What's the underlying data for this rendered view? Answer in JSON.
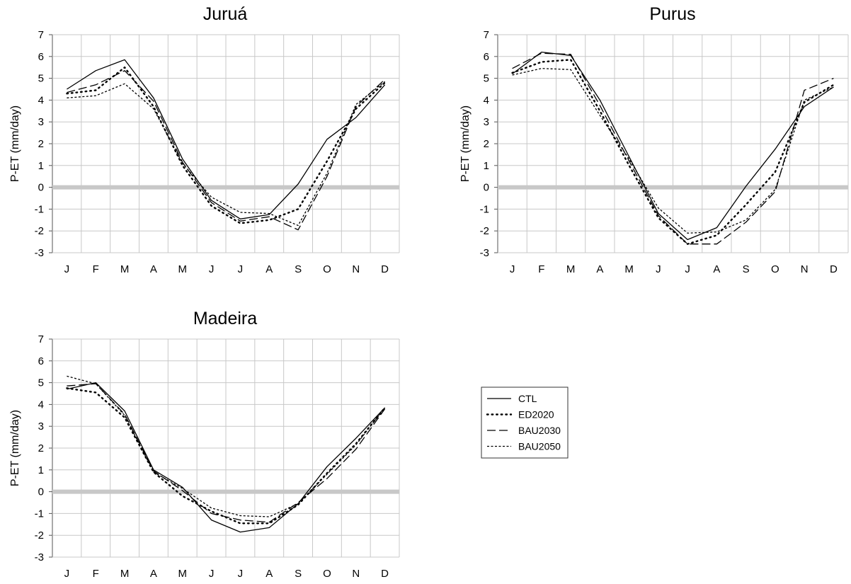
{
  "ylabel": "P-ET (mm/day)",
  "legend": {
    "items": [
      {
        "name": "CTL",
        "style": "solid"
      },
      {
        "name": "ED2020",
        "style": "dotted"
      },
      {
        "name": "BAU2030",
        "style": "longdash"
      },
      {
        "name": "BAU2050",
        "style": "shortdash"
      }
    ]
  },
  "colors": {
    "line": "#000000",
    "grid": "#c8c8c8",
    "zero_line": "#c8c8c8"
  },
  "chart_data": [
    {
      "type": "line",
      "title": "Juruá",
      "categories": [
        "J",
        "F",
        "M",
        "A",
        "M",
        "J",
        "J",
        "A",
        "S",
        "O",
        "N",
        "D"
      ],
      "ylim": [
        -3,
        7
      ],
      "yticks": [
        7,
        6,
        5,
        4,
        3,
        2,
        1,
        0,
        -1,
        -2,
        -3
      ],
      "grid": true,
      "series": [
        {
          "name": "CTL",
          "values": [
            4.5,
            5.35,
            5.85,
            4.1,
            1.3,
            -0.6,
            -1.45,
            -1.25,
            0.15,
            2.2,
            3.2,
            4.7
          ]
        },
        {
          "name": "ED2020",
          "values": [
            4.3,
            4.45,
            5.5,
            3.7,
            1.0,
            -0.85,
            -1.65,
            -1.5,
            -1.0,
            1.2,
            3.6,
            4.8
          ]
        },
        {
          "name": "BAU2030",
          "values": [
            4.35,
            4.7,
            5.35,
            3.95,
            1.15,
            -0.7,
            -1.55,
            -1.35,
            -1.95,
            0.5,
            3.7,
            4.95
          ]
        },
        {
          "name": "BAU2050",
          "values": [
            4.1,
            4.2,
            4.75,
            3.6,
            1.1,
            -0.45,
            -1.15,
            -1.2,
            -1.75,
            0.65,
            3.8,
            4.85
          ]
        }
      ]
    },
    {
      "type": "line",
      "title": "Purus",
      "categories": [
        "J",
        "F",
        "M",
        "A",
        "M",
        "J",
        "J",
        "A",
        "S",
        "O",
        "N",
        "D"
      ],
      "ylim": [
        -3,
        7
      ],
      "yticks": [
        7,
        6,
        5,
        4,
        3,
        2,
        1,
        0,
        -1,
        -2,
        -3
      ],
      "grid": true,
      "series": [
        {
          "name": "CTL",
          "values": [
            5.2,
            6.2,
            6.05,
            4.0,
            1.4,
            -1.2,
            -2.4,
            -1.85,
            0.05,
            1.75,
            3.7,
            4.6
          ]
        },
        {
          "name": "ED2020",
          "values": [
            5.25,
            5.75,
            5.85,
            3.5,
            1.0,
            -1.4,
            -2.6,
            -2.2,
            -0.8,
            0.7,
            3.9,
            4.7
          ]
        },
        {
          "name": "BAU2030",
          "values": [
            5.45,
            6.15,
            6.1,
            3.75,
            1.2,
            -1.3,
            -2.6,
            -2.6,
            -1.6,
            -0.2,
            4.45,
            5.0
          ]
        },
        {
          "name": "BAU2050",
          "values": [
            5.15,
            5.45,
            5.4,
            3.3,
            1.3,
            -0.95,
            -2.1,
            -2.05,
            -1.5,
            -0.1,
            4.0,
            4.6
          ]
        }
      ]
    },
    {
      "type": "line",
      "title": "Madeira",
      "categories": [
        "J",
        "F",
        "M",
        "A",
        "M",
        "J",
        "J",
        "A",
        "S",
        "O",
        "N",
        "D"
      ],
      "ylim": [
        -3,
        7
      ],
      "yticks": [
        7,
        6,
        5,
        4,
        3,
        2,
        1,
        0,
        -1,
        -2,
        -3
      ],
      "grid": true,
      "series": [
        {
          "name": "CTL",
          "values": [
            4.7,
            5.0,
            3.7,
            1.0,
            0.2,
            -1.3,
            -1.85,
            -1.65,
            -0.55,
            1.15,
            2.45,
            3.85
          ]
        },
        {
          "name": "ED2020",
          "values": [
            4.75,
            4.55,
            3.4,
            0.9,
            -0.2,
            -0.9,
            -1.45,
            -1.45,
            -0.6,
            0.85,
            2.2,
            3.85
          ]
        },
        {
          "name": "BAU2030",
          "values": [
            4.85,
            4.95,
            3.55,
            0.95,
            0.05,
            -1.0,
            -1.3,
            -1.4,
            -0.5,
            0.6,
            1.95,
            3.8
          ]
        },
        {
          "name": "BAU2050",
          "values": [
            5.3,
            4.95,
            3.5,
            0.9,
            0.15,
            -0.75,
            -1.1,
            -1.15,
            -0.55,
            0.8,
            2.15,
            3.85
          ]
        }
      ]
    }
  ]
}
